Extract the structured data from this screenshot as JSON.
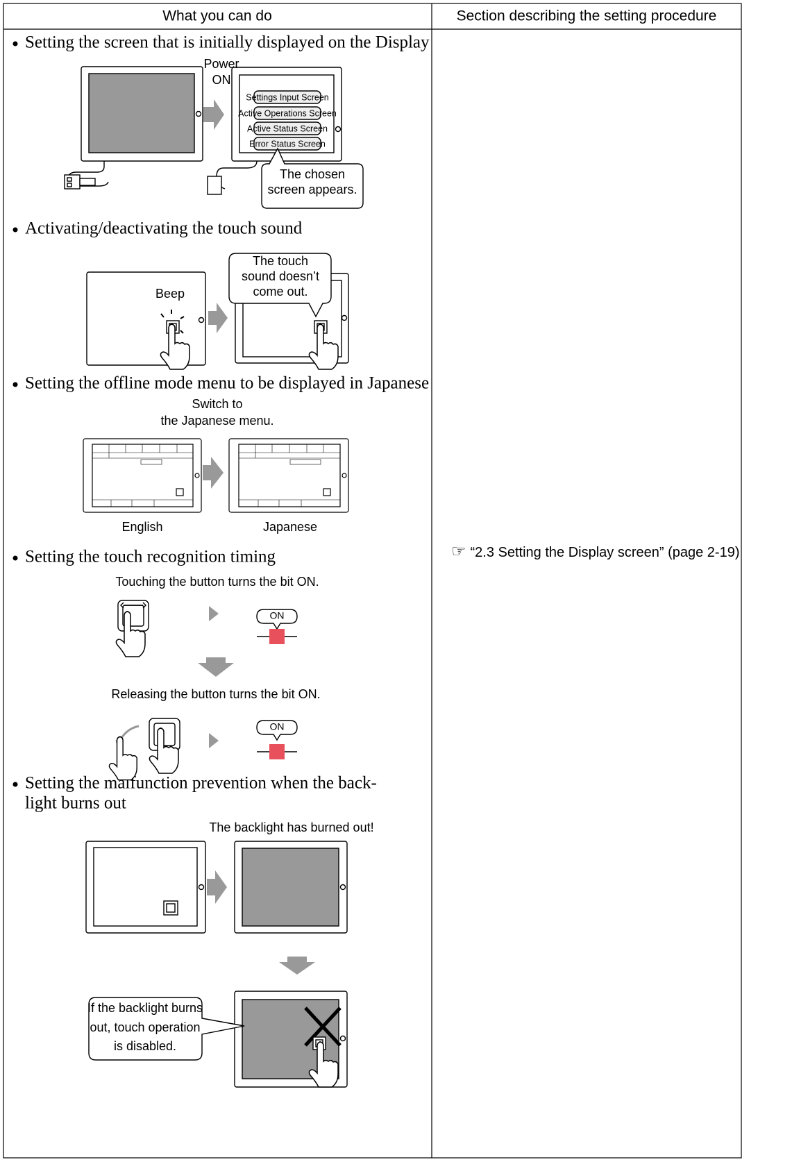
{
  "header": [
    "What you can do",
    "Section describing the setting procedure"
  ],
  "items": [
    {
      "text": [
        "Setting the screen that is initially displayed on the Display"
      ],
      "figure": {
        "power_on": [
          "Power",
          "ON"
        ],
        "buttons": [
          "Settings Input Screen",
          "Active Operations Screen",
          "Active Status Screen",
          "Error Status Screen"
        ],
        "callout": [
          "The chosen",
          "screen appears."
        ]
      }
    },
    {
      "text": [
        "Activating/deactivating the touch sound"
      ],
      "figure": {
        "sound": "Beep",
        "callout": [
          "The touch",
          "sound doesn’t",
          "come out."
        ]
      }
    },
    {
      "text": [
        "Setting the offline mode menu to be displayed in Japanese"
      ],
      "figure": {
        "caption": [
          "Switch to",
          "the Japanese menu."
        ],
        "labels": [
          "English",
          "Japanese"
        ]
      }
    },
    {
      "text": [
        "Setting the touch recognition timing"
      ],
      "figure": {
        "steps": [
          {
            "caption": "Touching the button turns the bit ON.",
            "state": "ON"
          },
          {
            "caption": "Releasing the button turns the bit ON.",
            "state": "ON"
          }
        ]
      }
    },
    {
      "text": [
        "Setting the malfunction prevention when the back-",
        "light burns out"
      ],
      "figure": {
        "caption": "The backlight has burned out!",
        "callout": [
          "If the backlight burns",
          "out, touch operation",
          "is disabled."
        ]
      }
    }
  ],
  "reference": {
    "icon": "☞",
    "text": "“2.3 Setting the Display screen” (page 2-19)"
  }
}
